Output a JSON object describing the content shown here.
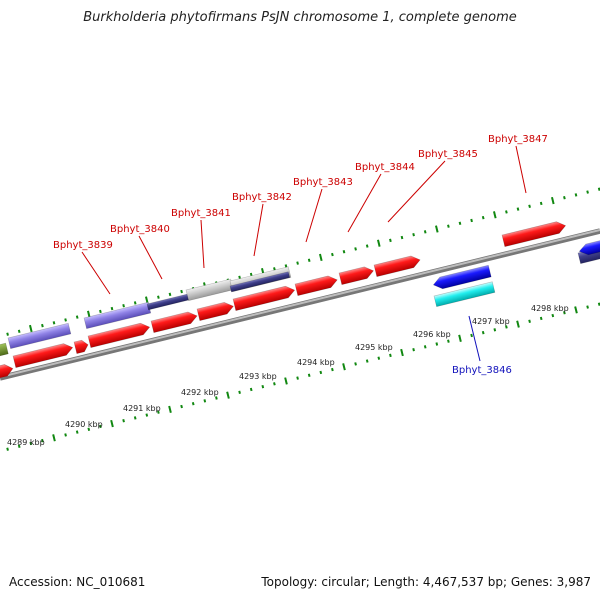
{
  "title": "Burkholderia phytofirmans PsJN chromosome 1, complete genome",
  "footer": {
    "accession": "Accession: NC_010681",
    "summary": "Topology: circular; Length: 4,467,537 bp; Genes: 3,987"
  },
  "colors": {
    "backbone": "#8a8a8a",
    "forward_cds": "#ee0000",
    "reverse_cds": "#1111dd",
    "forward_label": "#cc0000",
    "reverse_label": "#1111bb",
    "rna": "#6a5acd",
    "pseudo": "#c0c0c0",
    "cyan": "#00e0e0",
    "tick": "#118811",
    "olive": "#6b8e23"
  },
  "scale": {
    "unit": "kbp",
    "labels": [
      "4289 kbp",
      "4290 kbp",
      "4291 kbp",
      "4292 kbp",
      "4293 kbp",
      "4294 kbp",
      "4295 kbp",
      "4296 kbp",
      "4297 kbp",
      "4298 kbp"
    ]
  },
  "genes": [
    {
      "name": "Bphyt_3839",
      "strand": "forward"
    },
    {
      "name": "Bphyt_3840",
      "strand": "forward"
    },
    {
      "name": "Bphyt_3841",
      "strand": "forward"
    },
    {
      "name": "Bphyt_3842",
      "strand": "forward"
    },
    {
      "name": "Bphyt_3843",
      "strand": "forward"
    },
    {
      "name": "Bphyt_3844",
      "strand": "forward"
    },
    {
      "name": "Bphyt_3845",
      "strand": "forward"
    },
    {
      "name": "Bphyt_3846",
      "strand": "reverse"
    },
    {
      "name": "Bphyt_3847",
      "strand": "forward"
    }
  ]
}
